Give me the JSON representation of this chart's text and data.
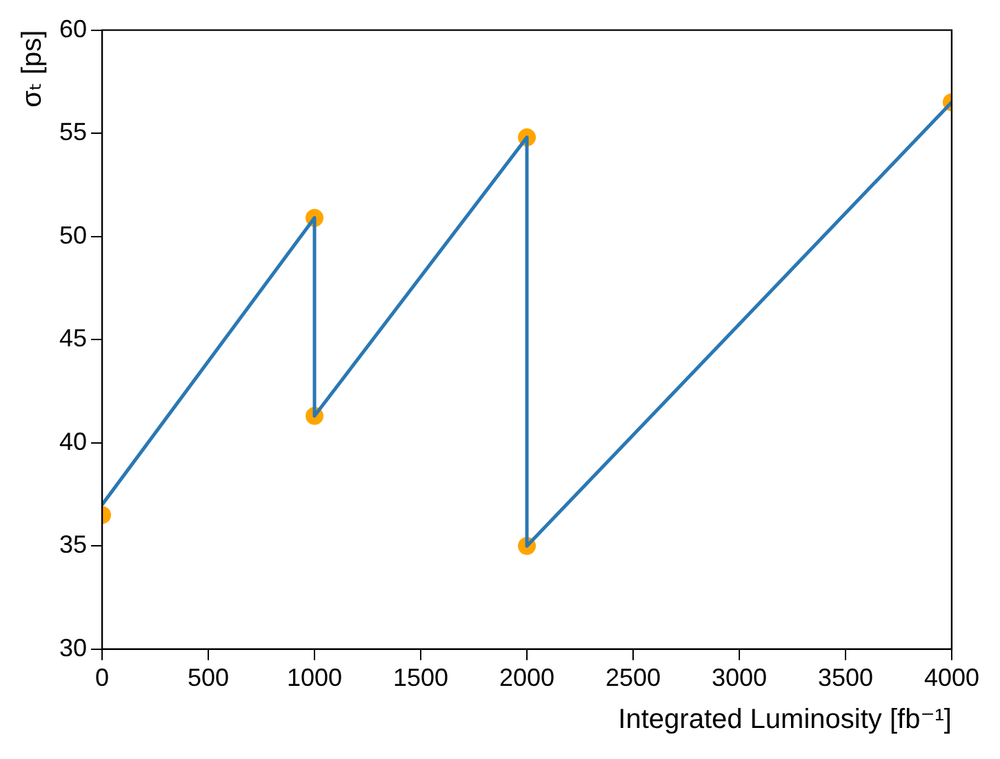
{
  "chart_data": {
    "type": "line",
    "xlabel": "Integrated Luminosity [fb⁻¹]",
    "ylabel": "σₜ [ps]",
    "xlim": [
      0,
      4000
    ],
    "xticks": [
      0,
      500,
      1000,
      1500,
      2000,
      2500,
      3000,
      3500,
      4000
    ],
    "ylim": [
      30,
      60
    ],
    "yticks": [
      30,
      35,
      40,
      45,
      50,
      55,
      60
    ],
    "grid": false,
    "legend": false,
    "series": [
      {
        "color": "#2a78b4",
        "marker": "none",
        "line_style": "solid",
        "x": [
          0,
          1000,
          1000,
          2000,
          2000,
          4000
        ],
        "values": [
          37.0,
          50.9,
          41.3,
          54.8,
          35.0,
          56.5
        ]
      },
      {
        "type": "scatter",
        "color": "#ffa500",
        "marker": "circle",
        "x": [
          0,
          1000,
          1000,
          2000,
          2000,
          4000
        ],
        "values": [
          36.5,
          50.9,
          41.3,
          54.8,
          35.0,
          56.5
        ]
      }
    ]
  }
}
